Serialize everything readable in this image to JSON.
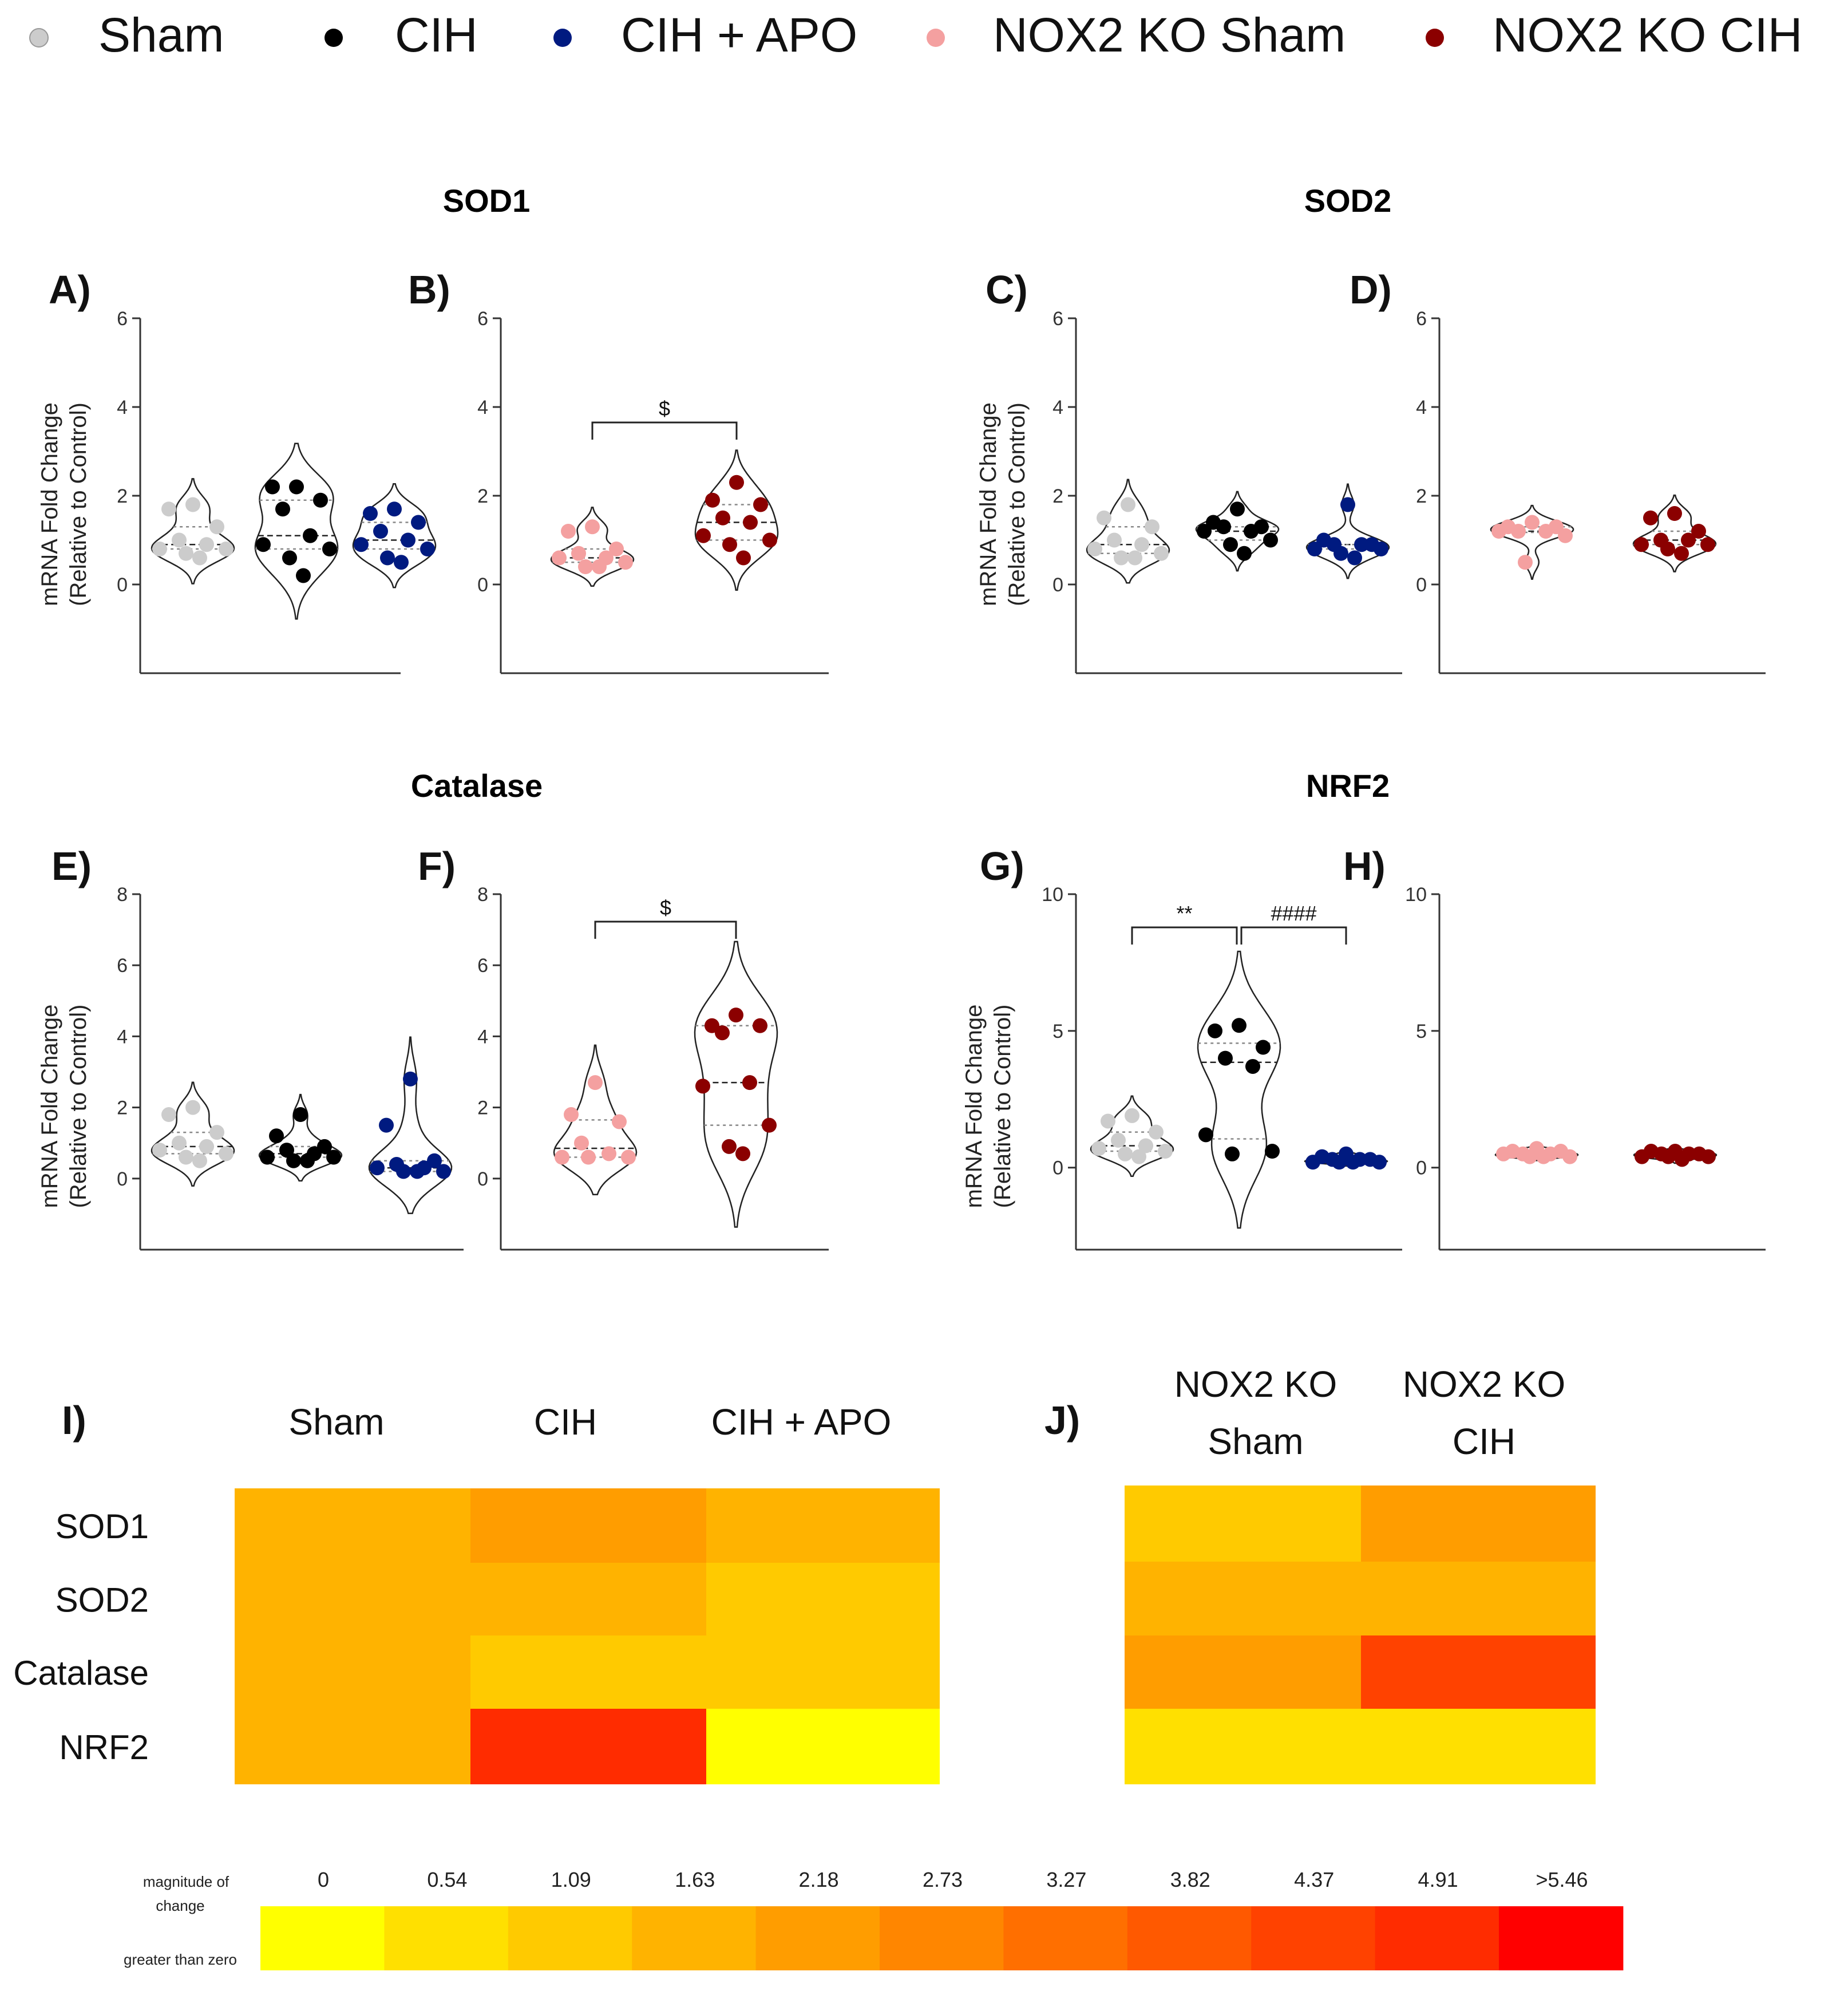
{
  "legend": [
    {
      "label": "Sham",
      "color": "#cccccc"
    },
    {
      "label": "CIH",
      "color": "#000000"
    },
    {
      "label": "CIH + APO",
      "color": "#001a80"
    },
    {
      "label": "NOX2 KO Sham",
      "color": "#f4a0a0"
    },
    {
      "label": "NOX2 KO CIH",
      "color": "#8b0000"
    }
  ],
  "section_titles": {
    "sod1": "SOD1",
    "sod2": "SOD2",
    "catalase": "Catalase",
    "nrf2": "NRF2"
  },
  "y_label_line1": "mRNA Fold Change",
  "y_label_line2": "(Relative to Control)",
  "chart_data": [
    {
      "type": "violin-scatter",
      "panel": "A)",
      "gene": "SOD1",
      "ylim": [
        -2,
        6
      ],
      "yticks": [
        0,
        2,
        4,
        6
      ],
      "series": [
        {
          "name": "Sham",
          "color": "#cccccc",
          "values": [
            1.8,
            1.7,
            1.3,
            1.0,
            0.9,
            0.8,
            0.8,
            0.7,
            0.6
          ]
        },
        {
          "name": "CIH",
          "color": "#000000",
          "values": [
            2.2,
            2.2,
            1.9,
            1.7,
            1.1,
            0.9,
            0.8,
            0.6,
            0.2
          ]
        },
        {
          "name": "CIH + APO",
          "color": "#001a80",
          "values": [
            1.7,
            1.6,
            1.4,
            1.2,
            1.0,
            0.9,
            0.8,
            0.6,
            0.5
          ]
        }
      ]
    },
    {
      "type": "violin-scatter",
      "panel": "B)",
      "gene": "SOD1",
      "ylim": [
        -2,
        6
      ],
      "yticks": [
        0,
        2,
        4,
        6
      ],
      "annotations": [
        {
          "text": "$",
          "from": 0,
          "to": 1
        }
      ],
      "series": [
        {
          "name": "NOX2 KO Sham",
          "color": "#f4a0a0",
          "values": [
            1.3,
            1.2,
            0.8,
            0.7,
            0.6,
            0.6,
            0.5,
            0.4,
            0.4
          ]
        },
        {
          "name": "NOX2 KO CIH",
          "color": "#8b0000",
          "values": [
            2.3,
            1.9,
            1.8,
            1.5,
            1.4,
            1.1,
            1.0,
            0.9,
            0.6
          ]
        }
      ]
    },
    {
      "type": "violin-scatter",
      "panel": "C)",
      "gene": "SOD2",
      "ylim": [
        -2,
        6
      ],
      "yticks": [
        0,
        2,
        4,
        6
      ],
      "series": [
        {
          "name": "Sham",
          "color": "#cccccc",
          "values": [
            1.8,
            1.5,
            1.3,
            1.0,
            0.9,
            0.8,
            0.7,
            0.6,
            0.6
          ]
        },
        {
          "name": "CIH",
          "color": "#000000",
          "values": [
            1.7,
            1.4,
            1.3,
            1.3,
            1.2,
            1.2,
            1.0,
            0.9,
            0.7
          ]
        },
        {
          "name": "CIH + APO",
          "color": "#001a80",
          "values": [
            1.8,
            1.0,
            0.9,
            0.9,
            0.9,
            0.8,
            0.8,
            0.7,
            0.6
          ]
        }
      ]
    },
    {
      "type": "violin-scatter",
      "panel": "D)",
      "gene": "SOD2",
      "ylim": [
        -2,
        6
      ],
      "yticks": [
        0,
        2,
        4,
        6
      ],
      "series": [
        {
          "name": "NOX2 KO Sham",
          "color": "#f4a0a0",
          "values": [
            1.4,
            1.3,
            1.3,
            1.2,
            1.2,
            1.2,
            1.1,
            0.5
          ]
        },
        {
          "name": "NOX2 KO CIH",
          "color": "#8b0000",
          "values": [
            1.6,
            1.5,
            1.2,
            1.0,
            1.0,
            0.9,
            0.9,
            0.8,
            0.7
          ]
        }
      ]
    },
    {
      "type": "violin-scatter",
      "panel": "E)",
      "gene": "Catalase",
      "ylim": [
        -2,
        8
      ],
      "yticks": [
        0,
        2,
        4,
        6,
        8
      ],
      "series": [
        {
          "name": "Sham",
          "color": "#cccccc",
          "values": [
            2.0,
            1.8,
            1.3,
            1.0,
            0.9,
            0.8,
            0.7,
            0.6,
            0.5
          ]
        },
        {
          "name": "CIH",
          "color": "#000000",
          "values": [
            1.8,
            1.2,
            0.9,
            0.8,
            0.7,
            0.6,
            0.6,
            0.5,
            0.5
          ]
        },
        {
          "name": "CIH + APO",
          "color": "#001a80",
          "values": [
            2.8,
            1.5,
            0.5,
            0.4,
            0.3,
            0.3,
            0.2,
            0.2,
            0.2
          ]
        }
      ]
    },
    {
      "type": "violin-scatter",
      "panel": "F)",
      "gene": "Catalase",
      "ylim": [
        -2,
        8
      ],
      "yticks": [
        0,
        2,
        4,
        6,
        8
      ],
      "annotations": [
        {
          "text": "$",
          "from": 0,
          "to": 1
        }
      ],
      "series": [
        {
          "name": "NOX2 KO Sham",
          "color": "#f4a0a0",
          "values": [
            2.7,
            1.8,
            1.6,
            1.0,
            0.7,
            0.6,
            0.6,
            0.6
          ]
        },
        {
          "name": "NOX2 KO CIH",
          "color": "#8b0000",
          "values": [
            4.6,
            4.3,
            4.3,
            4.1,
            2.7,
            2.6,
            1.5,
            0.9,
            0.7
          ]
        }
      ]
    },
    {
      "type": "violin-scatter",
      "panel": "G)",
      "gene": "NRF2",
      "ylim": [
        -3,
        10
      ],
      "yticks": [
        0,
        5,
        10
      ],
      "annotations": [
        {
          "text": "**",
          "from": 0,
          "to": 1
        },
        {
          "text": "####",
          "from": 1,
          "to": 2
        }
      ],
      "series": [
        {
          "name": "Sham",
          "color": "#cccccc",
          "values": [
            1.9,
            1.7,
            1.3,
            1.0,
            0.8,
            0.7,
            0.6,
            0.5,
            0.4
          ]
        },
        {
          "name": "CIH",
          "color": "#000000",
          "values": [
            5.2,
            5.0,
            4.4,
            4.0,
            3.7,
            1.2,
            0.6,
            0.5
          ]
        },
        {
          "name": "CIH + APO",
          "color": "#001a80",
          "values": [
            0.5,
            0.4,
            0.3,
            0.3,
            0.3,
            0.2,
            0.2,
            0.2,
            0.2
          ]
        }
      ]
    },
    {
      "type": "violin-scatter",
      "panel": "H)",
      "gene": "NRF2",
      "ylim": [
        -3,
        10
      ],
      "yticks": [
        0,
        5,
        10
      ],
      "series": [
        {
          "name": "NOX2 KO Sham",
          "color": "#f4a0a0",
          "values": [
            0.7,
            0.6,
            0.6,
            0.5,
            0.5,
            0.5,
            0.4,
            0.4,
            0.4
          ]
        },
        {
          "name": "NOX2 KO CIH",
          "color": "#8b0000",
          "values": [
            0.6,
            0.6,
            0.5,
            0.5,
            0.5,
            0.4,
            0.4,
            0.4,
            0.3
          ]
        }
      ]
    },
    {
      "type": "heatmap",
      "panel": "I)",
      "columns": [
        "Sham",
        "CIH",
        "CIH + APO"
      ],
      "rows": [
        "SOD1",
        "SOD2",
        "Catalase",
        "NRF2"
      ],
      "values": [
        [
          1.63,
          2.18,
          1.45
        ],
        [
          1.63,
          1.9,
          1.3
        ],
        [
          1.63,
          1.1,
          0.9
        ],
        [
          1.45,
          4.8,
          0.25
        ]
      ]
    },
    {
      "type": "heatmap",
      "panel": "J)",
      "columns": [
        [
          "NOX2 KO",
          "Sham"
        ],
        [
          "NOX2 KO",
          "CIH"
        ]
      ],
      "rows": [
        "SOD1",
        "SOD2",
        "Catalase",
        "NRF2"
      ],
      "values": [
        [
          0.9,
          2.05
        ],
        [
          1.85,
          1.7
        ],
        [
          2.1,
          4.3
        ],
        [
          0.75,
          0.65
        ]
      ]
    },
    {
      "type": "colorscale",
      "label_top": [
        "magnitude of",
        "change"
      ],
      "label_bottom": "greater than zero",
      "ticks": [
        "0",
        "0.54",
        "1.09",
        "1.63",
        "2.18",
        "2.73",
        "3.27",
        "3.82",
        "4.37",
        "4.91",
        ">5.46"
      ],
      "colors": [
        "#ffff00",
        "#ffe000",
        "#ffca00",
        "#ffb300",
        "#ff9d00",
        "#ff8600",
        "#ff6f00",
        "#ff5900",
        "#ff4200",
        "#ff2c00",
        "#ff0000"
      ]
    }
  ]
}
